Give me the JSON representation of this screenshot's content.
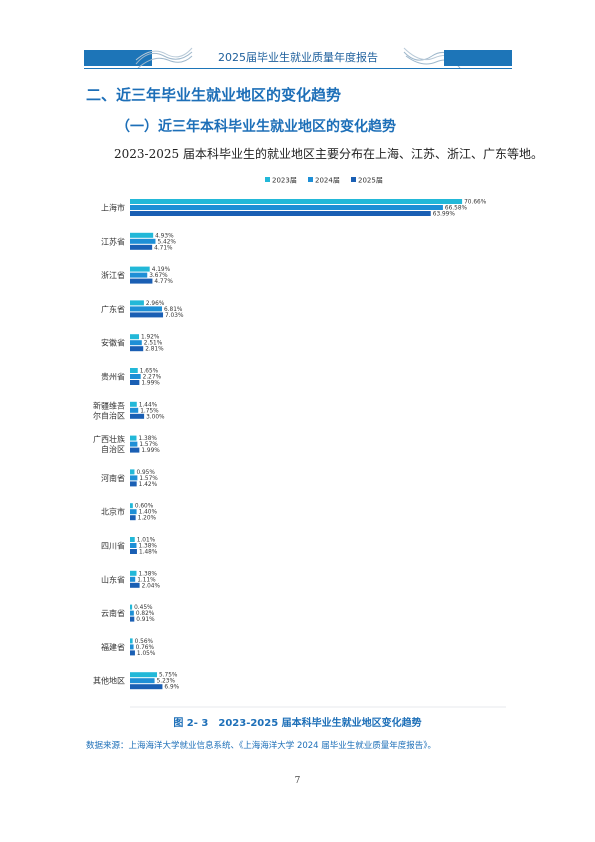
{
  "header": {
    "title": "2025届毕业生就业质量年度报告"
  },
  "section": {
    "heading": "二、近三年毕业生就业地区的变化趋势",
    "subheading": "（一）近三年本科毕业生就业地区的变化趋势",
    "paragraph": "2023-2025 届本科毕业生的就业地区主要分布在上海、江苏、浙江、广东等地。"
  },
  "chart_data": {
    "type": "bar",
    "orientation": "horizontal",
    "categories": [
      "上海市",
      "江苏省",
      "浙江省",
      "广东省",
      "安徽省",
      "贵州省",
      "新疆维吾尔自治区",
      "广西壮族自治区",
      "河南省",
      "北京市",
      "四川省",
      "山东省",
      "云南省",
      "福建省",
      "其他地区"
    ],
    "series": [
      {
        "name": "2023届",
        "color": "#22b8d8",
        "values": [
          70.66,
          4.93,
          4.19,
          2.96,
          1.92,
          1.65,
          1.44,
          1.38,
          0.95,
          0.6,
          1.01,
          1.38,
          0.45,
          0.56,
          5.75
        ],
        "labels": [
          "70.66%",
          "4.93%",
          "4.19%",
          "2.96%",
          "1.92%",
          "1.65%",
          "1.44%",
          "1.38%",
          "0.95%",
          "0.60%",
          "1.01%",
          "1.38%",
          "0.45%",
          "0.56%",
          "5.75%"
        ]
      },
      {
        "name": "2024届",
        "color": "#1e8fd6",
        "values": [
          66.58,
          5.42,
          3.67,
          6.81,
          2.51,
          2.27,
          1.75,
          1.57,
          1.57,
          1.4,
          1.38,
          1.11,
          0.82,
          0.76,
          5.23
        ],
        "labels": [
          "66.58%",
          "5.42%",
          "3.67%",
          "6.81%",
          "2.51%",
          "2.27%",
          "1.75%",
          "1.57%",
          "1.57%",
          "1.40%",
          "1.38%",
          "1.11%",
          "0.82%",
          "0.76%",
          "5.23%"
        ]
      },
      {
        "name": "2025届",
        "color": "#1a5fb4",
        "values": [
          63.99,
          4.71,
          4.77,
          7.03,
          2.81,
          1.99,
          3.0,
          1.99,
          1.42,
          1.2,
          1.48,
          2.04,
          0.91,
          1.05,
          6.9
        ],
        "labels": [
          "63.99%",
          "4.71%",
          "4.77%",
          "7.03%",
          "2.81%",
          "1.99%",
          "3.00%",
          "1.99%",
          "1.42%",
          "1.20%",
          "1.48%",
          "2.04%",
          "0.91%",
          "1.05%",
          "6.9%"
        ]
      }
    ],
    "xlim": [
      0,
      80
    ],
    "xticks": [
      "0.00%",
      "10.00%",
      "20.00%",
      "30.00%",
      "40.00%",
      "50.00%",
      "60.00%",
      "70.00%",
      "80.00%"
    ],
    "legend_position": "top"
  },
  "caption": "图 2- 3　2023-2025 届本科毕业生就业地区变化趋势",
  "source": "数据来源：上海海洋大学就业信息系统、《上海海洋大学 2024 届毕业生就业质量年度报告》。",
  "page_number": "7"
}
